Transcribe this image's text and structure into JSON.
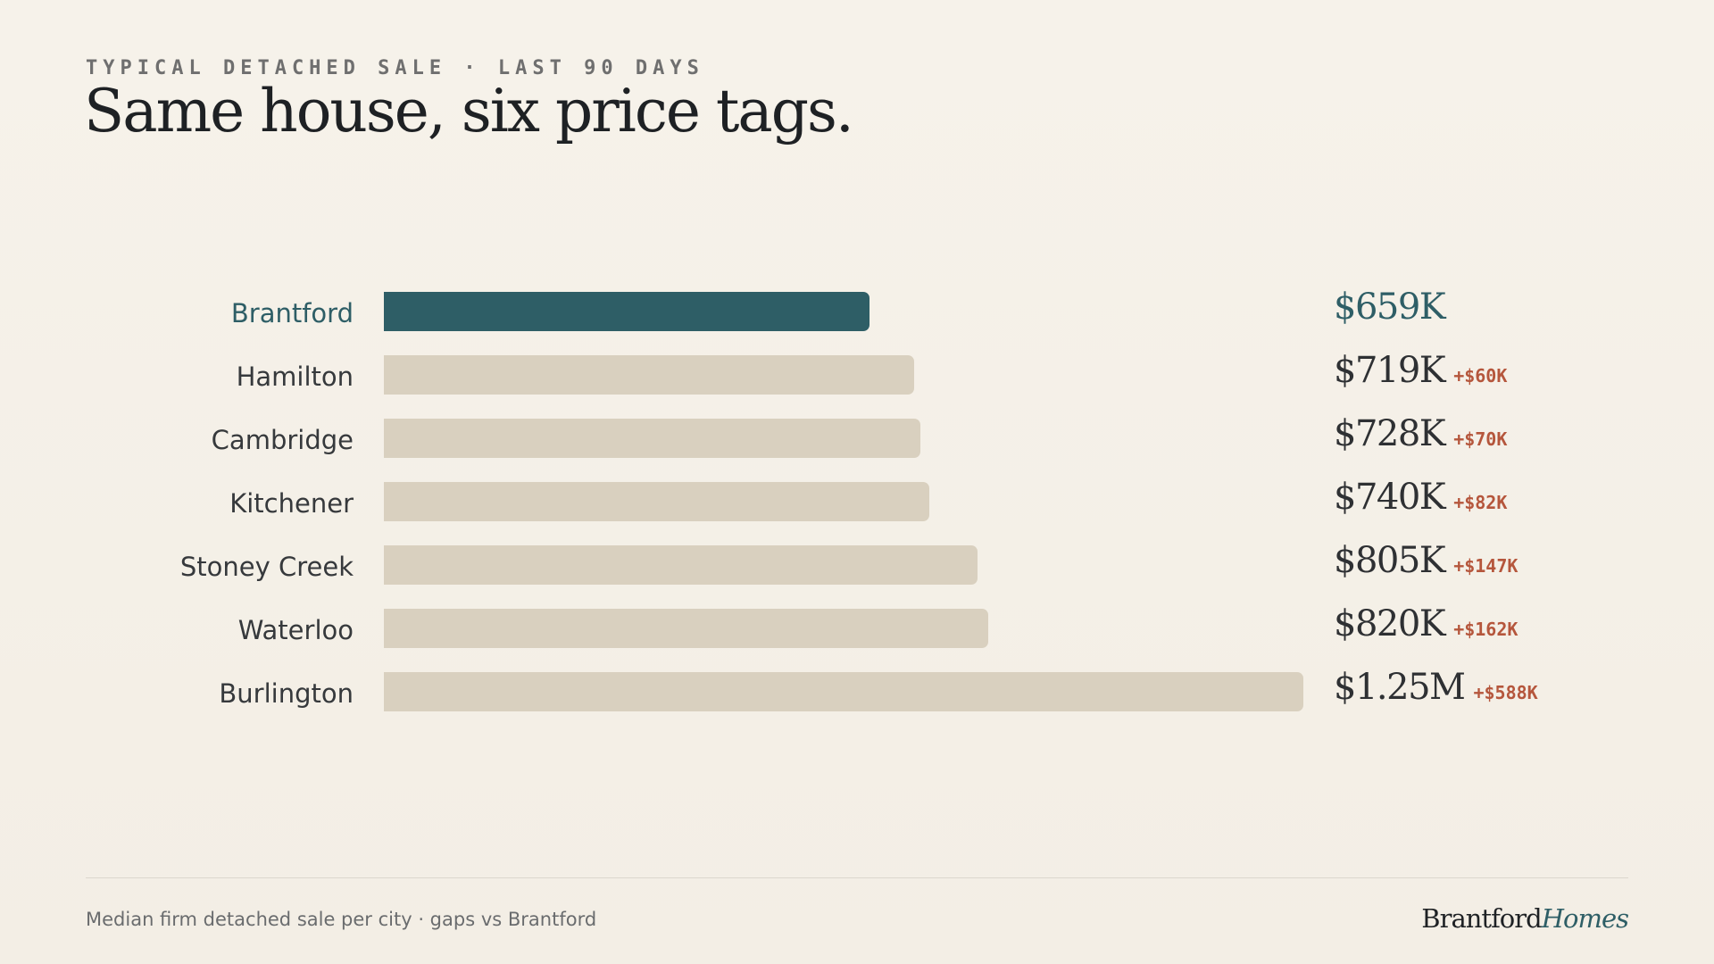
{
  "header": {
    "eyebrow": "TYPICAL DETACHED SALE · LAST 90 DAYS",
    "title": "Same house, six price tags."
  },
  "colors": {
    "highlight": "#2e5e66",
    "bar": "#d9d0bf",
    "gap": "#b5563c",
    "background": "#f5f1e9"
  },
  "chart_data": {
    "type": "bar",
    "orientation": "horizontal",
    "categories": [
      "Brantford",
      "Hamilton",
      "Cambridge",
      "Kitchener",
      "Stoney Creek",
      "Waterloo",
      "Burlington"
    ],
    "values": [
      659,
      719,
      728,
      740,
      805,
      820,
      1247
    ],
    "unit": "$K",
    "value_labels": [
      "$659K",
      "$719K",
      "$728K",
      "$740K",
      "$805K",
      "$820K",
      "$1.25M"
    ],
    "gap_labels": [
      "",
      "+$60K",
      "+$70K",
      "+$82K",
      "+$147K",
      "+$162K",
      "+$588K"
    ],
    "highlight": "Brantford",
    "xlim": [
      0,
      1247
    ],
    "grid": false,
    "legend": "none"
  },
  "footer": {
    "note": "Median firm detached sale per city · gaps vs Brantford",
    "brand_a": "Brantford",
    "brand_b": "Homes"
  }
}
